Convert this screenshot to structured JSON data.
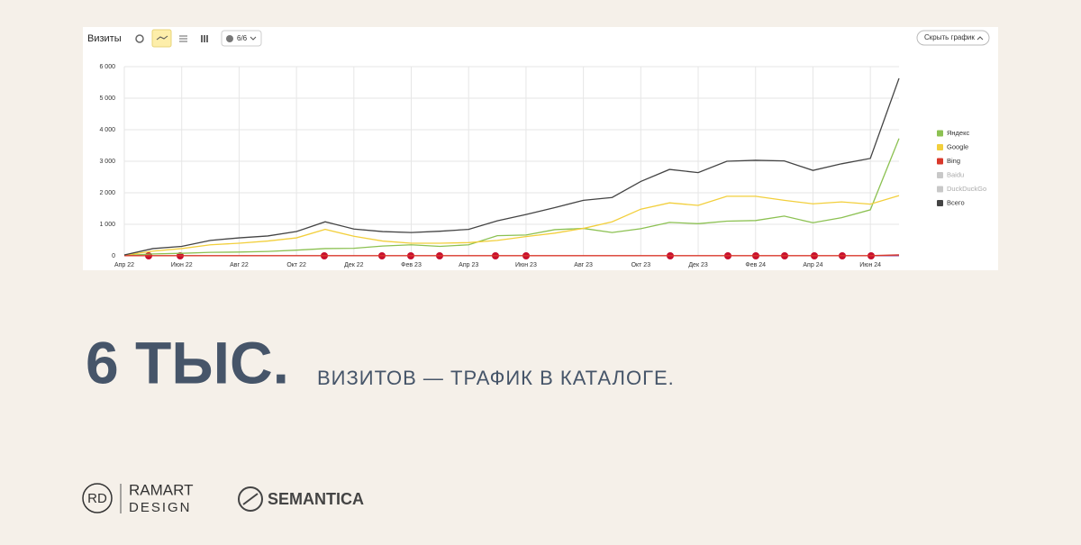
{
  "toolbar": {
    "title": "Визиты",
    "filter": "6/6",
    "hide_button": "Скрыть график"
  },
  "chart_data": {
    "type": "line",
    "categories": [
      "Апр 22",
      null,
      "Июн 22",
      null,
      "Авг 22",
      null,
      "Окт 22",
      null,
      "Дек 22",
      null,
      "Фев 23",
      null,
      "Апр 23",
      null,
      "Июн 23",
      null,
      "Авг 23",
      null,
      "Окт 23",
      null,
      "Дек 23",
      null,
      "Фев 24",
      null,
      "Апр 24",
      null,
      "Июн 24",
      null
    ],
    "ylim": [
      0,
      6000
    ],
    "yticks": [
      0,
      {
        "value": 1000,
        "label": "1 000"
      },
      {
        "value": 2000,
        "label": "2 000"
      },
      {
        "value": 3000,
        "label": "3 000"
      },
      {
        "value": 4000,
        "label": "4 000"
      },
      {
        "value": 5000,
        "label": "5 000"
      },
      {
        "value": 6000,
        "label": "6 000"
      }
    ],
    "grid": true,
    "legend": "right",
    "series": [
      {
        "name": "Яндекс",
        "color": "#8cc152",
        "checked": true,
        "values": [
          10,
          60,
          80,
          110,
          120,
          140,
          180,
          230,
          240,
          310,
          350,
          300,
          350,
          640,
          660,
          830,
          870,
          740,
          860,
          1060,
          1020,
          1100,
          1120,
          1260,
          1050,
          1210,
          1460,
          3720
        ]
      },
      {
        "name": "Google",
        "color": "#f2cf3c",
        "checked": true,
        "values": [
          20,
          150,
          230,
          350,
          400,
          470,
          570,
          840,
          620,
          470,
          400,
          400,
          420,
          490,
          610,
          720,
          870,
          1080,
          1480,
          1680,
          1600,
          1890,
          1890,
          1760,
          1650,
          1710,
          1640,
          1910
        ]
      },
      {
        "name": "Bing",
        "color": "#d9382b",
        "checked": true,
        "values": [
          5,
          5,
          5,
          5,
          5,
          5,
          5,
          5,
          5,
          5,
          5,
          5,
          5,
          5,
          5,
          5,
          5,
          5,
          5,
          5,
          5,
          5,
          5,
          5,
          5,
          5,
          5,
          30
        ]
      },
      {
        "name": "Baidu",
        "color": "#c8c8c8",
        "checked": false,
        "values": [
          null,
          null,
          null,
          null,
          null,
          null,
          null,
          null,
          null,
          null,
          null,
          null,
          null,
          null,
          null,
          null,
          null,
          null,
          null,
          null,
          null,
          null,
          null,
          null,
          null,
          null,
          null,
          null
        ]
      },
      {
        "name": "DuckDuckGo",
        "color": "#c8c8c8",
        "checked": false,
        "values": [
          null,
          null,
          null,
          null,
          null,
          null,
          null,
          null,
          null,
          null,
          null,
          null,
          null,
          null,
          null,
          null,
          null,
          null,
          null,
          null,
          null,
          null,
          null,
          null,
          null,
          null,
          null,
          null
        ]
      },
      {
        "name": "Всего",
        "color": "#444444",
        "checked": true,
        "values": [
          30,
          230,
          300,
          490,
          570,
          630,
          770,
          1080,
          850,
          770,
          740,
          780,
          840,
          1110,
          1310,
          1530,
          1760,
          1850,
          2360,
          2740,
          2640,
          3000,
          3030,
          3010,
          2710,
          2920,
          3090,
          5630
        ]
      }
    ]
  },
  "headline": {
    "number": "6 ТЫС.",
    "caption": "ВИЗИТОВ — ТРАФИК В КАТАЛОГЕ."
  },
  "logos": {
    "rd": "RD",
    "ramart": "RAMART",
    "design": "DESIGN",
    "semantica": "SEMANTICA"
  }
}
